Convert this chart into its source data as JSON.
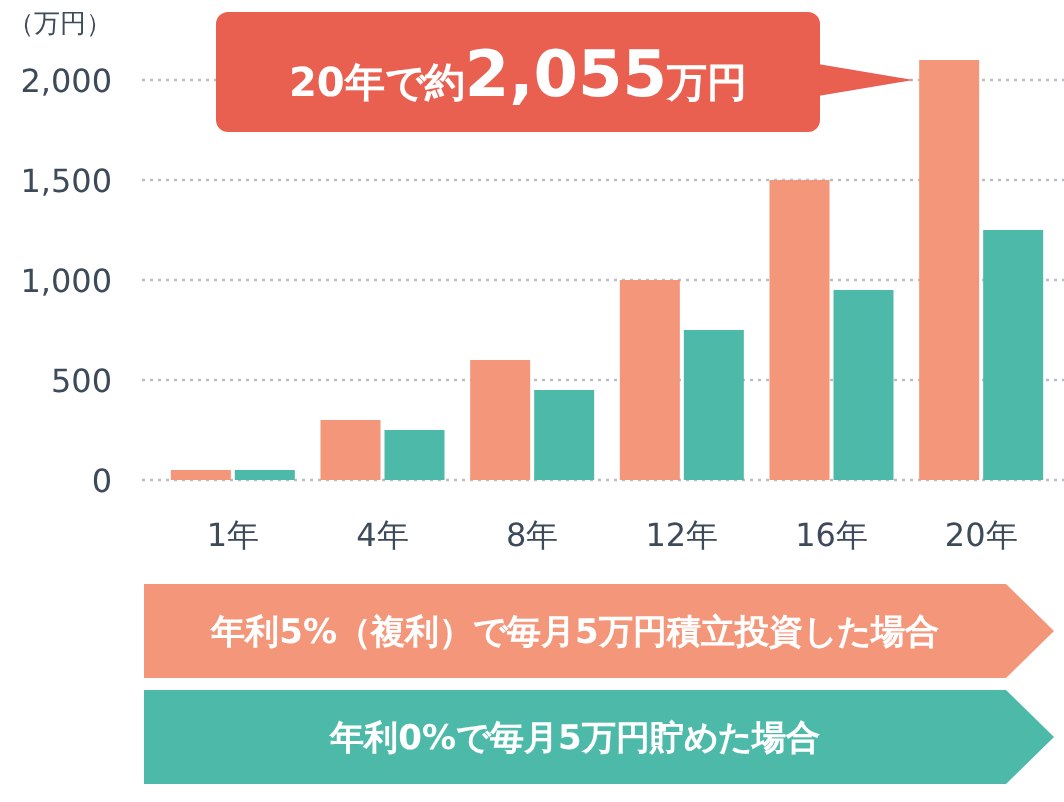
{
  "chart_data": {
    "type": "bar",
    "ylabel": "（万円）",
    "categories": [
      "1年",
      "4年",
      "8年",
      "12年",
      "16年",
      "20年"
    ],
    "series": [
      {
        "name": "年利5%（複利）で毎月5万円積立投資した場合",
        "color": "#f4967a",
        "values": [
          50,
          300,
          600,
          1000,
          1500,
          2100
        ]
      },
      {
        "name": "年利0%で毎月5万円貯めた場合",
        "color": "#4dbaa9",
        "values": [
          50,
          250,
          450,
          750,
          950,
          1250
        ]
      }
    ],
    "ylim": [
      0,
      2100
    ],
    "yticks": [
      0,
      {
        "value": 500,
        "label": "500"
      },
      {
        "value": 1000,
        "label": "1,000"
      },
      {
        "value": 1500,
        "label": "1,500"
      },
      {
        "value": 2000,
        "label": "2,000"
      }
    ],
    "grid": "y",
    "legend": "bottom",
    "annotations": [
      "20年で約2,055万円"
    ]
  }
}
